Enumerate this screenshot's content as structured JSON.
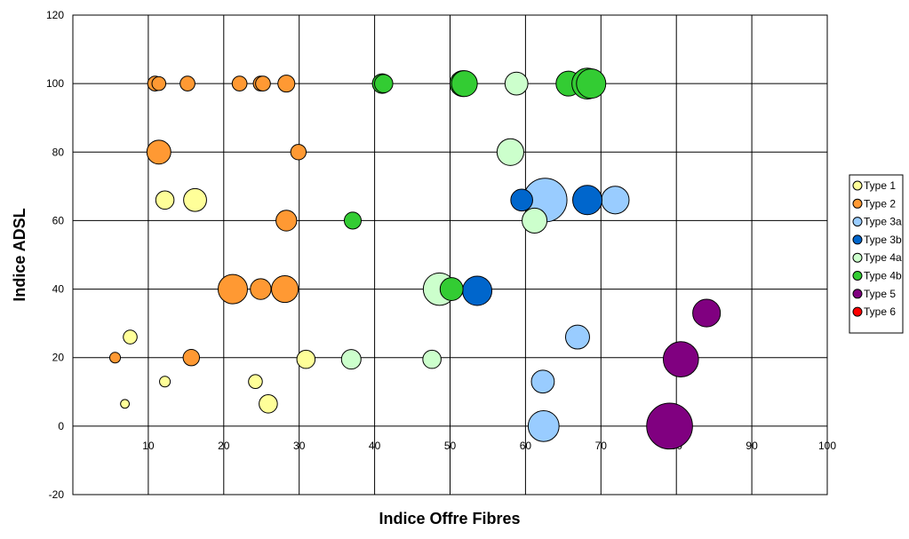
{
  "chart_data": {
    "type": "scatter",
    "xlabel": "Indice Offre Fibres",
    "ylabel": "Indice ADSL",
    "xlim": [
      0,
      100
    ],
    "ylim": [
      -20,
      120
    ],
    "x_ticks": [
      10,
      20,
      30,
      40,
      50,
      60,
      70,
      80,
      90,
      100
    ],
    "y_ticks": [
      -20,
      0,
      20,
      40,
      60,
      80,
      100,
      120
    ],
    "grid": true,
    "legend_position": "right",
    "series": [
      {
        "name": "Type 1",
        "color": "#ffff99",
        "points": [
          {
            "x": 12.2,
            "y": 66,
            "size": 3.5
          },
          {
            "x": 16.2,
            "y": 66,
            "size": 5.5
          },
          {
            "x": 7.6,
            "y": 26,
            "size": 2.0
          },
          {
            "x": 12.2,
            "y": 13,
            "size": 1.2
          },
          {
            "x": 6.9,
            "y": 6.5,
            "size": 0.8
          },
          {
            "x": 24.2,
            "y": 13,
            "size": 2.0
          },
          {
            "x": 25.9,
            "y": 6.5,
            "size": 3.5
          },
          {
            "x": 30.9,
            "y": 19.5,
            "size": 3.5
          }
        ]
      },
      {
        "name": "Type 2",
        "color": "#ff9933",
        "points": [
          {
            "x": 10.9,
            "y": 100,
            "size": 2.3
          },
          {
            "x": 11.4,
            "y": 100,
            "size": 2.0
          },
          {
            "x": 15.2,
            "y": 100,
            "size": 2.3
          },
          {
            "x": 22.1,
            "y": 100,
            "size": 2.3
          },
          {
            "x": 24.9,
            "y": 100,
            "size": 2.3
          },
          {
            "x": 25.2,
            "y": 100,
            "size": 2.3
          },
          {
            "x": 28.3,
            "y": 100,
            "size": 3.0
          },
          {
            "x": 11.4,
            "y": 80,
            "size": 6.0
          },
          {
            "x": 29.9,
            "y": 80,
            "size": 2.5
          },
          {
            "x": 28.3,
            "y": 60,
            "size": 4.5
          },
          {
            "x": 21.2,
            "y": 40,
            "size": 9.0
          },
          {
            "x": 24.9,
            "y": 40,
            "size": 4.5
          },
          {
            "x": 28.1,
            "y": 40,
            "size": 7.5
          },
          {
            "x": 5.6,
            "y": 20,
            "size": 1.2
          },
          {
            "x": 15.7,
            "y": 20,
            "size": 2.8
          }
        ]
      },
      {
        "name": "Type 3a",
        "color": "#99ccff",
        "points": [
          {
            "x": 62.6,
            "y": 66,
            "size": 20.0
          },
          {
            "x": 71.9,
            "y": 66,
            "size": 8.0
          },
          {
            "x": 66.9,
            "y": 26,
            "size": 6.0
          },
          {
            "x": 62.3,
            "y": 13,
            "size": 5.5
          },
          {
            "x": 62.4,
            "y": 0,
            "size": 10.0
          }
        ]
      },
      {
        "name": "Type 3b",
        "color": "#0066cc",
        "points": [
          {
            "x": 59.5,
            "y": 66,
            "size": 5.0
          },
          {
            "x": 68.2,
            "y": 66,
            "size": 9.0
          },
          {
            "x": 53.6,
            "y": 39.5,
            "size": 9.0
          }
        ]
      },
      {
        "name": "Type 4a",
        "color": "#ccffcc",
        "points": [
          {
            "x": 58.8,
            "y": 100,
            "size": 5.5
          },
          {
            "x": 58.0,
            "y": 80,
            "size": 7.5
          },
          {
            "x": 61.2,
            "y": 60,
            "size": 6.5
          },
          {
            "x": 48.6,
            "y": 40,
            "size": 11.0
          },
          {
            "x": 36.9,
            "y": 19.5,
            "size": 4.0
          },
          {
            "x": 47.6,
            "y": 19.5,
            "size": 3.5
          }
        ]
      },
      {
        "name": "Type 4b",
        "color": "#33cc33",
        "points": [
          {
            "x": 41.0,
            "y": 100,
            "size": 4.0
          },
          {
            "x": 41.2,
            "y": 100,
            "size": 3.5
          },
          {
            "x": 51.7,
            "y": 100,
            "size": 7.0
          },
          {
            "x": 51.9,
            "y": 100,
            "size": 7.0
          },
          {
            "x": 65.7,
            "y": 100,
            "size": 6.5
          },
          {
            "x": 68.2,
            "y": 100,
            "size": 10.0
          },
          {
            "x": 68.7,
            "y": 100,
            "size": 9.0
          },
          {
            "x": 37.1,
            "y": 60,
            "size": 3.0
          },
          {
            "x": 50.2,
            "y": 40,
            "size": 5.5
          }
        ]
      },
      {
        "name": "Type 5",
        "color": "#800080",
        "points": [
          {
            "x": 84.0,
            "y": 33,
            "size": 8.0
          },
          {
            "x": 80.6,
            "y": 19.5,
            "size": 13.0
          },
          {
            "x": 79.1,
            "y": 0,
            "size": 22.0
          }
        ]
      },
      {
        "name": "Type 6",
        "color": "#ff0000",
        "points": []
      }
    ]
  }
}
